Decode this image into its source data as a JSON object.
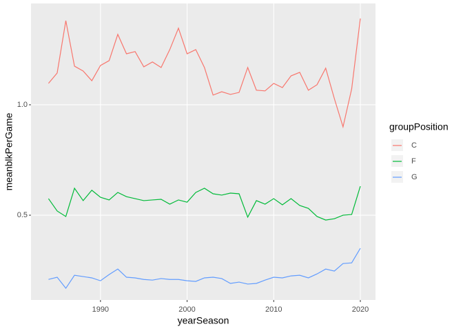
{
  "chart_data": {
    "type": "line",
    "x": [
      1984,
      1985,
      1986,
      1987,
      1988,
      1989,
      1990,
      1991,
      1992,
      1993,
      1994,
      1995,
      1996,
      1997,
      1998,
      1999,
      2000,
      2001,
      2002,
      2003,
      2004,
      2005,
      2006,
      2007,
      2008,
      2009,
      2010,
      2011,
      2012,
      2013,
      2014,
      2015,
      2016,
      2017,
      2018,
      2019,
      2020
    ],
    "x_label": "yearSeason",
    "y_label": "meanblkPerGame",
    "legend_title": "groupPosition",
    "legend_position": "right",
    "xlim": [
      1981.98,
      2021.75
    ],
    "xticks": [
      1990,
      2000,
      2010,
      2020
    ],
    "ylim": [
      0.116,
      1.459
    ],
    "yticks": [
      0.5,
      {
        "value": 1,
        "label": "1.0"
      }
    ],
    "grid": true,
    "series": [
      {
        "name": "C",
        "color": "#f8766d",
        "values": [
          1.097,
          1.144,
          1.381,
          1.175,
          1.153,
          1.109,
          1.178,
          1.2,
          1.319,
          1.231,
          1.241,
          1.172,
          1.194,
          1.169,
          1.25,
          1.347,
          1.231,
          1.25,
          1.169,
          1.044,
          1.059,
          1.047,
          1.056,
          1.169,
          1.066,
          1.063,
          1.097,
          1.078,
          1.131,
          1.147,
          1.066,
          1.091,
          1.166,
          1.028,
          0.9,
          1.072,
          1.391
        ]
      },
      {
        "name": "F",
        "color": "#00ba38",
        "values": [
          0.575,
          0.519,
          0.494,
          0.622,
          0.566,
          0.613,
          0.581,
          0.569,
          0.603,
          0.584,
          0.575,
          0.566,
          0.569,
          0.572,
          0.55,
          0.569,
          0.559,
          0.603,
          0.622,
          0.597,
          0.591,
          0.6,
          0.597,
          0.491,
          0.566,
          0.55,
          0.575,
          0.547,
          0.575,
          0.544,
          0.531,
          0.494,
          0.478,
          0.484,
          0.5,
          0.503,
          0.631
        ]
      },
      {
        "name": "G",
        "color": "#619cff",
        "values": [
          0.209,
          0.219,
          0.169,
          0.228,
          0.222,
          0.216,
          0.203,
          0.231,
          0.256,
          0.219,
          0.216,
          0.209,
          0.206,
          0.213,
          0.209,
          0.209,
          0.203,
          0.2,
          0.216,
          0.219,
          0.213,
          0.191,
          0.197,
          0.188,
          0.191,
          0.206,
          0.219,
          0.216,
          0.225,
          0.228,
          0.216,
          0.234,
          0.256,
          0.247,
          0.281,
          0.284,
          0.35
        ]
      }
    ]
  }
}
